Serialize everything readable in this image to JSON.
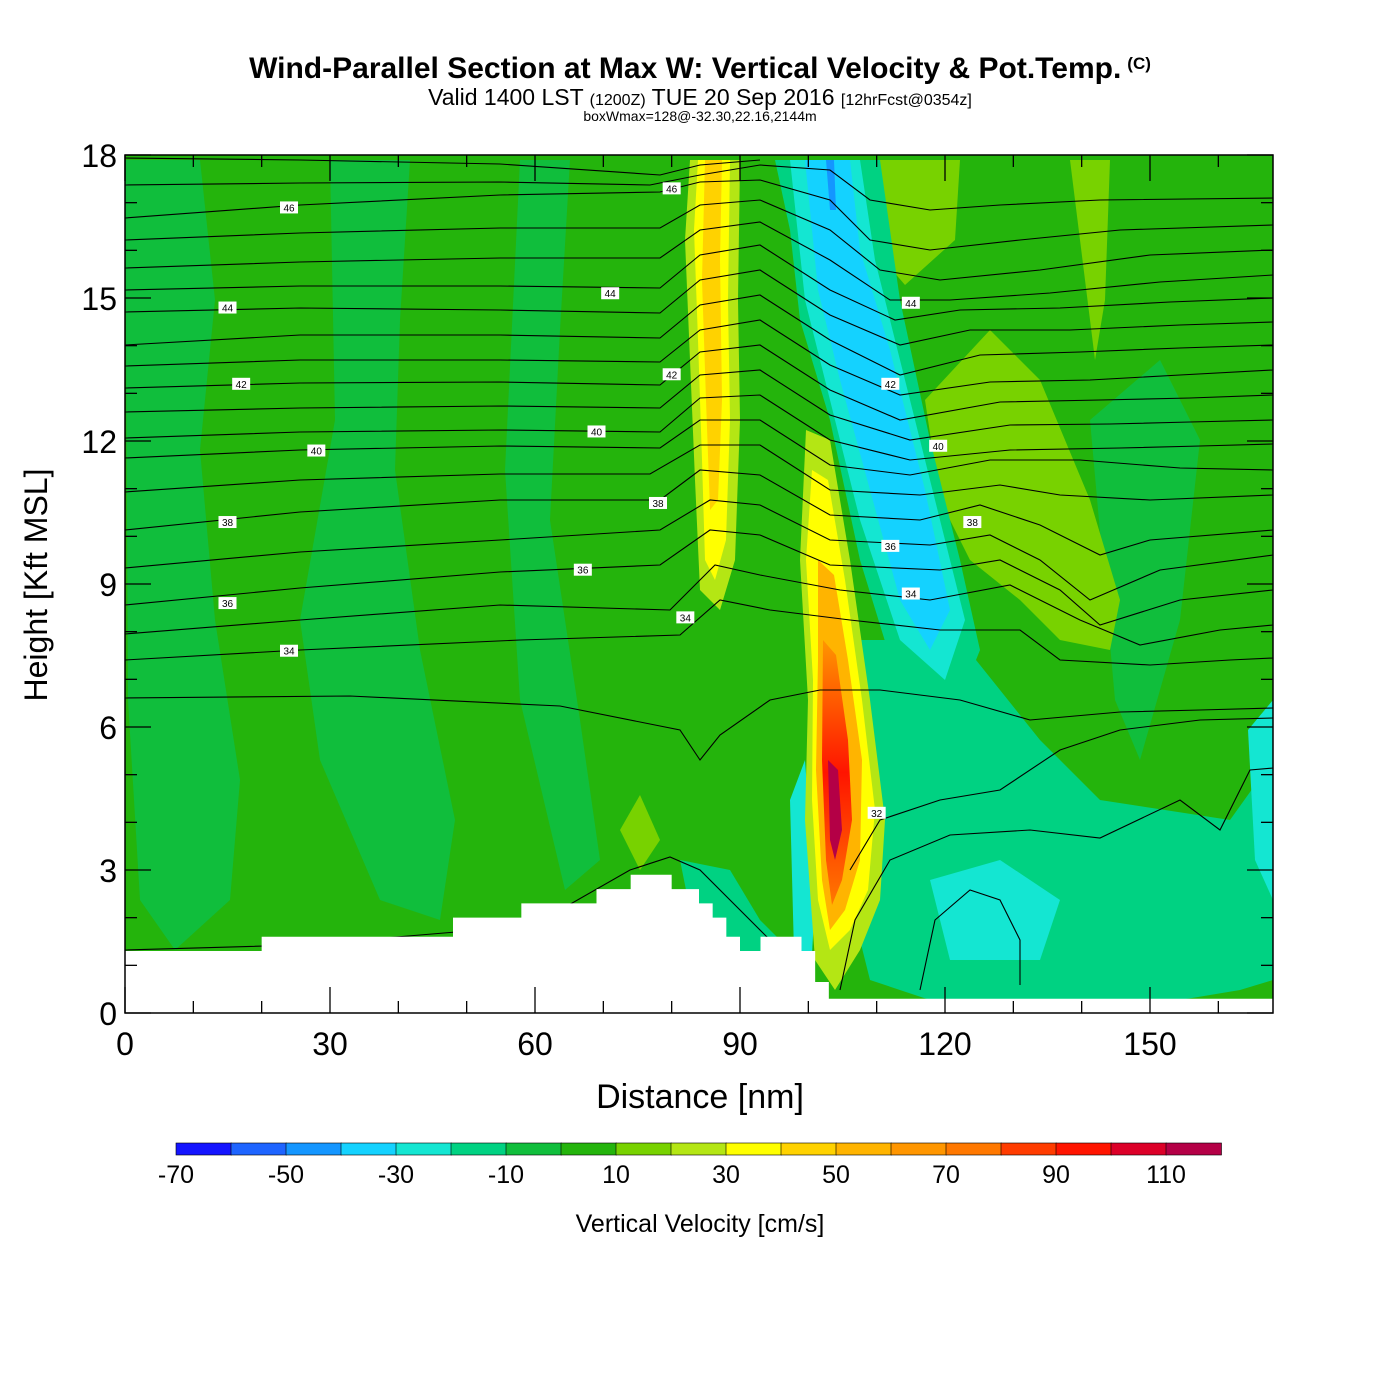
{
  "titles": {
    "main": "Wind-Parallel Section at Max W: Vertical Velocity & Pot.Temp.",
    "copyright": "(C)",
    "valid_prefix": "Valid 1400 LST",
    "zulu": "(1200Z)",
    "date": "TUE 20 Sep 2016",
    "forecast": "[12hrFcst@0354z]",
    "box_wmax": "boxWmax=128@-32.30,22.16,2144m"
  },
  "chart_data": {
    "type": "heatmap",
    "xlabel": "Distance [nm]",
    "ylabel": "Height [Kft MSL]",
    "xlim": [
      0,
      168
    ],
    "ylim": [
      0,
      18
    ],
    "x_ticks": [
      "0",
      "30",
      "60",
      "90",
      "120",
      "150"
    ],
    "y_ticks": [
      "0",
      "3",
      "6",
      "9",
      "12",
      "15",
      "18"
    ],
    "colorbar": {
      "label": "Vertical Velocity [cm/s]",
      "levels": [
        -70,
        -60,
        -50,
        -40,
        -30,
        -20,
        -10,
        0,
        10,
        20,
        30,
        40,
        50,
        60,
        70,
        80,
        90,
        100,
        110,
        120
      ],
      "tick_labels": [
        "-70",
        "-50",
        "-30",
        "-10",
        "10",
        "30",
        "50",
        "70",
        "90",
        "110"
      ],
      "colors": [
        "#1414ff",
        "#1e64ff",
        "#1496ff",
        "#14d2ff",
        "#14e6d2",
        "#00d282",
        "#10be3c",
        "#24b40c",
        "#78d200",
        "#b4e614",
        "#ffff00",
        "#ffd200",
        "#ffb400",
        "#ff9600",
        "#ff7800",
        "#ff3c00",
        "#ff1400",
        "#dc0028",
        "#b40046"
      ]
    },
    "background_color": "#24b40c",
    "vertical_velocity_features": [
      {
        "feature": "strong updraft core",
        "x_nm": 104,
        "height_kft": 4.5,
        "max_cm_s": 115
      },
      {
        "feature": "upper updraft column",
        "x_nm": 87,
        "height_kft": 15,
        "max_cm_s": 45
      },
      {
        "feature": "downdraft column",
        "x_nm": 103,
        "height_kft": 15,
        "min_cm_s": -35
      },
      {
        "feature": "downdraft lobe",
        "x_nm": 118,
        "height_kft": 7.5,
        "min_cm_s": -30
      }
    ],
    "potential_temperature_contours": {
      "units": "C",
      "labels": [
        {
          "value": "46",
          "x": 24,
          "y": 16.9
        },
        {
          "value": "46",
          "x": 80,
          "y": 17.3
        },
        {
          "value": "44",
          "x": 15,
          "y": 14.8
        },
        {
          "value": "44",
          "x": 71,
          "y": 15.1
        },
        {
          "value": "44",
          "x": 115,
          "y": 14.9
        },
        {
          "value": "42",
          "x": 17,
          "y": 13.2
        },
        {
          "value": "42",
          "x": 80,
          "y": 13.4
        },
        {
          "value": "42",
          "x": 112,
          "y": 13.2
        },
        {
          "value": "40",
          "x": 28,
          "y": 11.8
        },
        {
          "value": "40",
          "x": 69,
          "y": 12.2
        },
        {
          "value": "40",
          "x": 119,
          "y": 11.9
        },
        {
          "value": "38",
          "x": 15,
          "y": 10.3
        },
        {
          "value": "38",
          "x": 78,
          "y": 10.7
        },
        {
          "value": "38",
          "x": 124,
          "y": 10.3
        },
        {
          "value": "36",
          "x": 15,
          "y": 8.6
        },
        {
          "value": "36",
          "x": 67,
          "y": 9.3
        },
        {
          "value": "36",
          "x": 112,
          "y": 9.8
        },
        {
          "value": "34",
          "x": 24,
          "y": 7.6
        },
        {
          "value": "34",
          "x": 82,
          "y": 8.3
        },
        {
          "value": "34",
          "x": 115,
          "y": 8.8
        },
        {
          "value": "32",
          "x": 110,
          "y": 4.2
        }
      ]
    },
    "terrain_kft": [
      [
        0,
        1.3
      ],
      [
        20,
        1.3
      ],
      [
        20,
        1.6
      ],
      [
        48,
        1.6
      ],
      [
        48,
        2.0
      ],
      [
        58,
        2.0
      ],
      [
        58,
        2.3
      ],
      [
        69,
        2.3
      ],
      [
        69,
        2.6
      ],
      [
        74,
        2.6
      ],
      [
        74,
        2.9
      ],
      [
        80,
        2.9
      ],
      [
        80,
        2.6
      ],
      [
        84,
        2.6
      ],
      [
        84,
        2.3
      ],
      [
        86,
        2.3
      ],
      [
        86,
        2.0
      ],
      [
        88,
        2.0
      ],
      [
        88,
        1.6
      ],
      [
        90,
        1.6
      ],
      [
        90,
        1.3
      ],
      [
        93,
        1.3
      ],
      [
        93,
        1.6
      ],
      [
        99,
        1.6
      ],
      [
        99,
        1.3
      ],
      [
        101,
        1.3
      ],
      [
        101,
        0.65
      ],
      [
        103,
        0.65
      ],
      [
        103,
        0.3
      ],
      [
        168,
        0.3
      ]
    ]
  }
}
